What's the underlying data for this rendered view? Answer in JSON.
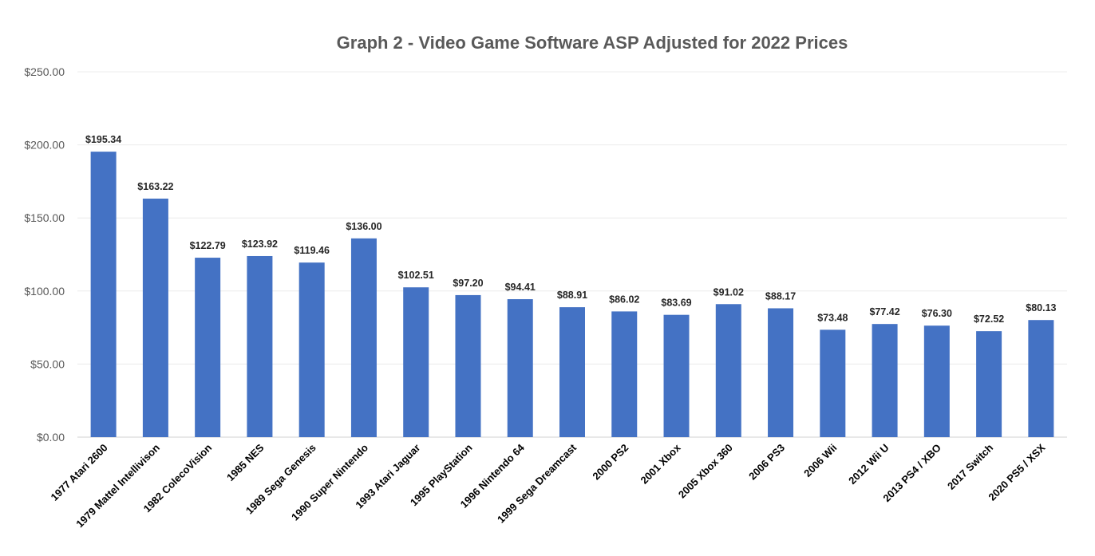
{
  "chart_data": {
    "type": "bar",
    "title": "Graph 2 - Video Game Software ASP Adjusted for 2022 Prices",
    "xlabel": "",
    "ylabel": "",
    "ylim": [
      0,
      250
    ],
    "yticks": [
      0,
      50,
      100,
      150,
      200,
      250
    ],
    "ytick_labels": [
      "$0.00",
      "$50.00",
      "$100.00",
      "$150.00",
      "$200.00",
      "$250.00"
    ],
    "categories": [
      "1977 Atari 2600",
      "1979 Mattel Intellivison",
      "1982 ColecoVision",
      "1985 NES",
      "1989 Sega Genesis",
      "1990 Super Nintendo",
      "1993 Atari Jaguar",
      "1995 PlayStation",
      "1996 Nintendo 64",
      "1999 Sega Dreamcast",
      "2000 PS2",
      "2001 Xbox",
      "2005 Xbox 360",
      "2006 PS3",
      "2006 Wii",
      "2012 Wii U",
      "2013 PS4 / XBO",
      "2017 Switch",
      "2020 PS5 / XSX"
    ],
    "values": [
      195.34,
      163.22,
      122.79,
      123.92,
      119.46,
      136.0,
      102.51,
      97.2,
      94.41,
      88.91,
      86.02,
      83.69,
      91.02,
      88.17,
      73.48,
      77.42,
      76.3,
      72.52,
      80.13
    ],
    "data_labels": [
      "$195.34",
      "$163.22",
      "$122.79",
      "$123.92",
      "$119.46",
      "$136.00",
      "$102.51",
      "$97.20",
      "$94.41",
      "$88.91",
      "$86.02",
      "$83.69",
      "$91.02",
      "$88.17",
      "$73.48",
      "$77.42",
      "$76.30",
      "$72.52",
      "$80.13"
    ],
    "bar_color": "#4472c4",
    "grid": true,
    "legend": "none"
  }
}
